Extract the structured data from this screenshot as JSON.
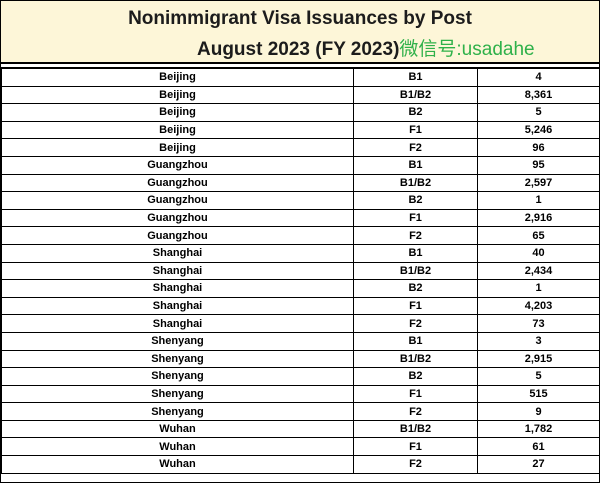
{
  "header": {
    "title_line1": "Nonimmigrant Visa Issuances by Post",
    "title_line2": "August 2023 (FY 2023)",
    "watermark": "微信号:usadahe"
  },
  "rows": [
    {
      "post": "Beijing",
      "visa": "B1",
      "count": "4"
    },
    {
      "post": "Beijing",
      "visa": "B1/B2",
      "count": "8,361"
    },
    {
      "post": "Beijing",
      "visa": "B2",
      "count": "5"
    },
    {
      "post": "Beijing",
      "visa": "F1",
      "count": "5,246"
    },
    {
      "post": "Beijing",
      "visa": "F2",
      "count": "96"
    },
    {
      "post": "Guangzhou",
      "visa": "B1",
      "count": "95"
    },
    {
      "post": "Guangzhou",
      "visa": "B1/B2",
      "count": "2,597"
    },
    {
      "post": "Guangzhou",
      "visa": "B2",
      "count": "1"
    },
    {
      "post": "Guangzhou",
      "visa": "F1",
      "count": "2,916"
    },
    {
      "post": "Guangzhou",
      "visa": "F2",
      "count": "65"
    },
    {
      "post": "Shanghai",
      "visa": "B1",
      "count": "40"
    },
    {
      "post": "Shanghai",
      "visa": "B1/B2",
      "count": "2,434"
    },
    {
      "post": "Shanghai",
      "visa": "B2",
      "count": "1"
    },
    {
      "post": "Shanghai",
      "visa": "F1",
      "count": "4,203"
    },
    {
      "post": "Shanghai",
      "visa": "F2",
      "count": "73"
    },
    {
      "post": "Shenyang",
      "visa": "B1",
      "count": "3"
    },
    {
      "post": "Shenyang",
      "visa": "B1/B2",
      "count": "2,915"
    },
    {
      "post": "Shenyang",
      "visa": "B2",
      "count": "5"
    },
    {
      "post": "Shenyang",
      "visa": "F1",
      "count": "515"
    },
    {
      "post": "Shenyang",
      "visa": "F2",
      "count": "9"
    },
    {
      "post": "Wuhan",
      "visa": "B1/B2",
      "count": "1,782"
    },
    {
      "post": "Wuhan",
      "visa": "F1",
      "count": "61"
    },
    {
      "post": "Wuhan",
      "visa": "F2",
      "count": "27"
    }
  ]
}
